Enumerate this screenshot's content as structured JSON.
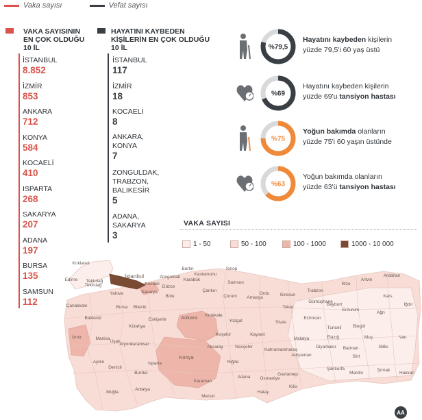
{
  "legend": {
    "cases_label": "Vaka sayısı",
    "deaths_label": "Vefat sayısı",
    "cases_color": "#d9534a",
    "deaths_color": "#3a3f45"
  },
  "cases_column": {
    "title_line1": "VAKA SAYISININ",
    "title_line2": "EN ÇOK OLDUĞU",
    "title_line3": "10 İL",
    "items": [
      {
        "city": "İSTANBUL",
        "value": "8.852"
      },
      {
        "city": "İZMİR",
        "value": "853"
      },
      {
        "city": "ANKARA",
        "value": "712"
      },
      {
        "city": "KONYA",
        "value": "584"
      },
      {
        "city": "KOCAELİ",
        "value": "410"
      },
      {
        "city": "ISPARTA",
        "value": "268"
      },
      {
        "city": "SAKARYA",
        "value": "207"
      },
      {
        "city": "ADANA",
        "value": "197"
      },
      {
        "city": "BURSA",
        "value": "135"
      },
      {
        "city": "SAMSUN",
        "value": "112"
      }
    ]
  },
  "deaths_column": {
    "title_line1": "HAYATINI KAYBEDEN",
    "title_line2": "KİŞİLERİN EN ÇOK OLDUĞU",
    "title_line3": "10 İL",
    "items": [
      {
        "city_l1": "İSTANBUL",
        "city_l2": "",
        "city_l3": "",
        "value": "117"
      },
      {
        "city_l1": "İZMİR",
        "city_l2": "",
        "city_l3": "",
        "value": "18"
      },
      {
        "city_l1": "KOCAELİ",
        "city_l2": "",
        "city_l3": "",
        "value": "8"
      },
      {
        "city_l1": "ANKARA,",
        "city_l2": "KONYA",
        "city_l3": "",
        "value": "7"
      },
      {
        "city_l1": "ZONGULDAK,",
        "city_l2": "TRABZON,",
        "city_l3": "BALIKESİR",
        "value": "5"
      },
      {
        "city_l1": "ADANA,",
        "city_l2": "SAKARYA",
        "city_l3": "",
        "value": "3"
      }
    ]
  },
  "stats": [
    {
      "ring": "%79,5",
      "percent": 79.5,
      "color": "#3a3f45",
      "icon": "elderly-person-icon",
      "l1_bold": "Hayatını kaybeden",
      "l1_rest": " kişilerin",
      "l2_pre": "yüzde 79,5'i 60 yaş üstü",
      "l2_bold": ""
    },
    {
      "ring": "%69",
      "percent": 69,
      "color": "#3a3f45",
      "icon": "heart-pressure-icon",
      "l1_bold": "",
      "l1_rest": "Hayatını kaybeden kişilerin",
      "l2_pre": "yüzde 69'u ",
      "l2_bold": "tansiyon hastası"
    },
    {
      "ring": "%75",
      "percent": 75,
      "color": "#ef8a3a",
      "icon": "elderly-person-icon",
      "l1_bold": "Yoğun bakımda",
      "l1_rest": " olanların",
      "l2_pre": "yüzde 75'i 60 yaşın üstünde",
      "l2_bold": ""
    },
    {
      "ring": "%63",
      "percent": 63,
      "color": "#ef8a3a",
      "icon": "heart-pressure-icon",
      "l1_bold": "",
      "l1_rest": "Yoğun bakımda olanların",
      "l2_pre": "yüzde 63'ü ",
      "l2_bold": "tansiyon hastası"
    }
  ],
  "map": {
    "title": "VAKA SAYISI",
    "keys": [
      {
        "label": "1 - 50",
        "color": "#fbeeeb"
      },
      {
        "label": "50 - 100",
        "color": "#f8dcd6"
      },
      {
        "label": "100 - 1000",
        "color": "#eeb6ab"
      },
      {
        "label": "1000 - 10 000",
        "color": "#7a4a33"
      }
    ],
    "province_labels": [
      "İstanbul",
      "Kırklareli",
      "Edirne",
      "Tekirdağ",
      "Çanakkale",
      "Balıkesir",
      "Bursa",
      "Yalova",
      "Kocaeli",
      "Sakarya",
      "Düzce",
      "Bolu",
      "Bartın",
      "Kastamonu",
      "Sinop",
      "Samsun",
      "Ordu",
      "Giresun",
      "Trabzon",
      "Rize",
      "Artvin",
      "Ardahan",
      "Kars",
      "Iğdır",
      "Ağrı",
      "Erzurum",
      "Bayburt",
      "Gümüşhane",
      "Tokat",
      "Amasya",
      "Çorum",
      "Çankırı",
      "Karabük",
      "Zonguldak",
      "Ankara",
      "Kırıkkale",
      "Yozgat",
      "Sivas",
      "Erzincan",
      "Tunceli",
      "Bingöl",
      "Muş",
      "Bitlis",
      "Van",
      "Hakkari",
      "Şırnak",
      "Siirt",
      "Batman",
      "Mardin",
      "Diyarbakır",
      "Şanlıurfa",
      "Adıyaman",
      "Malatya",
      "Elazığ",
      "Kahramanmaraş",
      "Gaziantep",
      "Kilis",
      "Hatay",
      "Osmaniye",
      "Adana",
      "Mersin",
      "Karaman",
      "Konya",
      "Aksaray",
      "Niğde",
      "Nevşehir",
      "Kırşehir",
      "Kayseri",
      "Eskişehir",
      "Kütahya",
      "Bilecik",
      "Uşak",
      "Afyonkarahisar",
      "Manisa",
      "İzmir",
      "Aydın",
      "Denizli",
      "Muğla",
      "Burdur",
      "Isparta",
      "Antalya",
      "Tekirdağ"
    ],
    "logo": "AA"
  }
}
